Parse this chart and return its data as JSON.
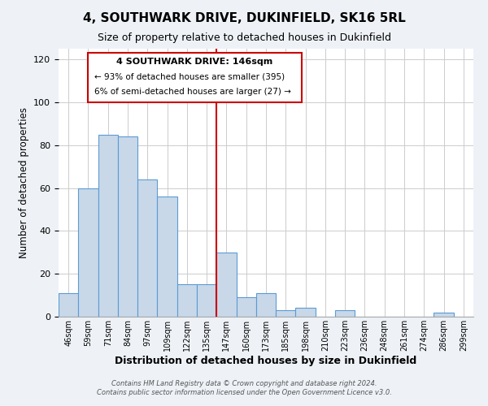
{
  "title": "4, SOUTHWARK DRIVE, DUKINFIELD, SK16 5RL",
  "subtitle": "Size of property relative to detached houses in Dukinfield",
  "xlabel": "Distribution of detached houses by size in Dukinfield",
  "ylabel": "Number of detached properties",
  "bar_labels": [
    "46sqm",
    "59sqm",
    "71sqm",
    "84sqm",
    "97sqm",
    "109sqm",
    "122sqm",
    "135sqm",
    "147sqm",
    "160sqm",
    "173sqm",
    "185sqm",
    "198sqm",
    "210sqm",
    "223sqm",
    "236sqm",
    "248sqm",
    "261sqm",
    "274sqm",
    "286sqm",
    "299sqm"
  ],
  "bar_values": [
    11,
    60,
    85,
    84,
    64,
    56,
    15,
    15,
    30,
    9,
    11,
    3,
    4,
    0,
    3,
    0,
    0,
    0,
    0,
    2,
    0
  ],
  "bar_color": "#c8d8e8",
  "bar_edge_color": "#5b9bd5",
  "vline_index": 8,
  "vline_color": "#cc0000",
  "annotation_title": "4 SOUTHWARK DRIVE: 146sqm",
  "annotation_line1": "← 93% of detached houses are smaller (395)",
  "annotation_line2": "6% of semi-detached houses are larger (27) →",
  "annotation_box_color": "#cc0000",
  "ylim": [
    0,
    125
  ],
  "yticks": [
    0,
    20,
    40,
    60,
    80,
    100,
    120
  ],
  "footnote1": "Contains HM Land Registry data © Crown copyright and database right 2024.",
  "footnote2": "Contains public sector information licensed under the Open Government Licence v3.0.",
  "bg_color": "#eef2f7",
  "plot_bg_color": "#ffffff"
}
